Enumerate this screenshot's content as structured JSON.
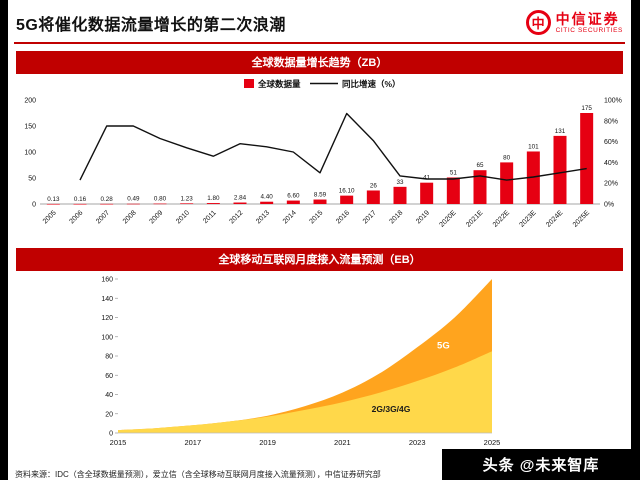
{
  "page": {
    "title": "5G将催化数据流量增长的第二次浪潮",
    "logo": {
      "mark": "中",
      "cn": "中信证券",
      "en": "CITIC SECURITIES"
    },
    "footer_source": "资料来源：IDC（含全球数据量预测），爱立信（含全球移动互联网月度接入流量预测），中信证券研究部",
    "watermark": "头条 @未来智库"
  },
  "colors": {
    "accent_red": "#C00000",
    "bar_red": "#E60012",
    "line_black": "#111111",
    "area_yellow": "#FFD84A",
    "area_orange": "#FFA41E"
  },
  "chart_data": [
    {
      "type": "bar",
      "title": "全球数据量增长趋势（ZB）",
      "legend": [
        "全球数据量",
        "同比增速（%）"
      ],
      "categories": [
        "2005",
        "2006",
        "2007",
        "2008",
        "2009",
        "2010",
        "2011",
        "2012",
        "2013",
        "2014",
        "2015",
        "2016",
        "2017",
        "2018",
        "2019",
        "2020E",
        "2021E",
        "2022E",
        "2023E",
        "2024E",
        "2025E"
      ],
      "values": [
        0.13,
        0.16,
        0.28,
        0.49,
        0.8,
        1.23,
        1.8,
        2.84,
        4.4,
        6.6,
        8.59,
        16.1,
        26,
        33,
        41,
        51,
        65,
        80,
        101,
        131,
        175
      ],
      "value_labels": [
        "0.13",
        "0.16",
        "0.28",
        "0.49",
        "0.80",
        "1.23",
        "1.80",
        "2.84",
        "4.40",
        "6.60",
        "8.59",
        "16.10",
        "26",
        "33",
        "41",
        "51",
        "65",
        "80",
        "101",
        "131",
        "175"
      ],
      "yoy_growth_pct": [
        null,
        23,
        75,
        75,
        63,
        54,
        46,
        58,
        55,
        50,
        30,
        87,
        61,
        27,
        24,
        24,
        27,
        23,
        26,
        30,
        34
      ],
      "ylim_left": [
        0,
        200
      ],
      "yticks_left": [
        0,
        50,
        100,
        150,
        200
      ],
      "ylim_right": [
        0,
        100
      ],
      "yticks_right": [
        "0%",
        "20%",
        "40%",
        "60%",
        "80%",
        "100%"
      ],
      "legend_position": "top",
      "grid": false
    },
    {
      "type": "area",
      "title": "全球移动互联网月度接入流量预测（EB）",
      "x": [
        2015,
        2016,
        2017,
        2018,
        2019,
        2020,
        2021,
        2022,
        2023,
        2024,
        2025
      ],
      "series": [
        {
          "name": "2G/3G/4G",
          "values": [
            3,
            5,
            8,
            12,
            17,
            24,
            32,
            42,
            54,
            68,
            85
          ],
          "color": "#FFD84A",
          "label_color": "#1a1a1a"
        },
        {
          "name": "5G",
          "values": [
            0,
            0,
            0,
            0,
            1,
            4,
            10,
            20,
            35,
            52,
            75
          ],
          "color": "#FFA41E",
          "label_color": "#ffffff"
        }
      ],
      "ylim": [
        0,
        160
      ],
      "yticks": [
        0,
        20,
        40,
        60,
        80,
        100,
        120,
        140,
        160
      ],
      "xticks": [
        2015,
        2017,
        2019,
        2021,
        2023,
        2025
      ],
      "grid": false
    }
  ]
}
